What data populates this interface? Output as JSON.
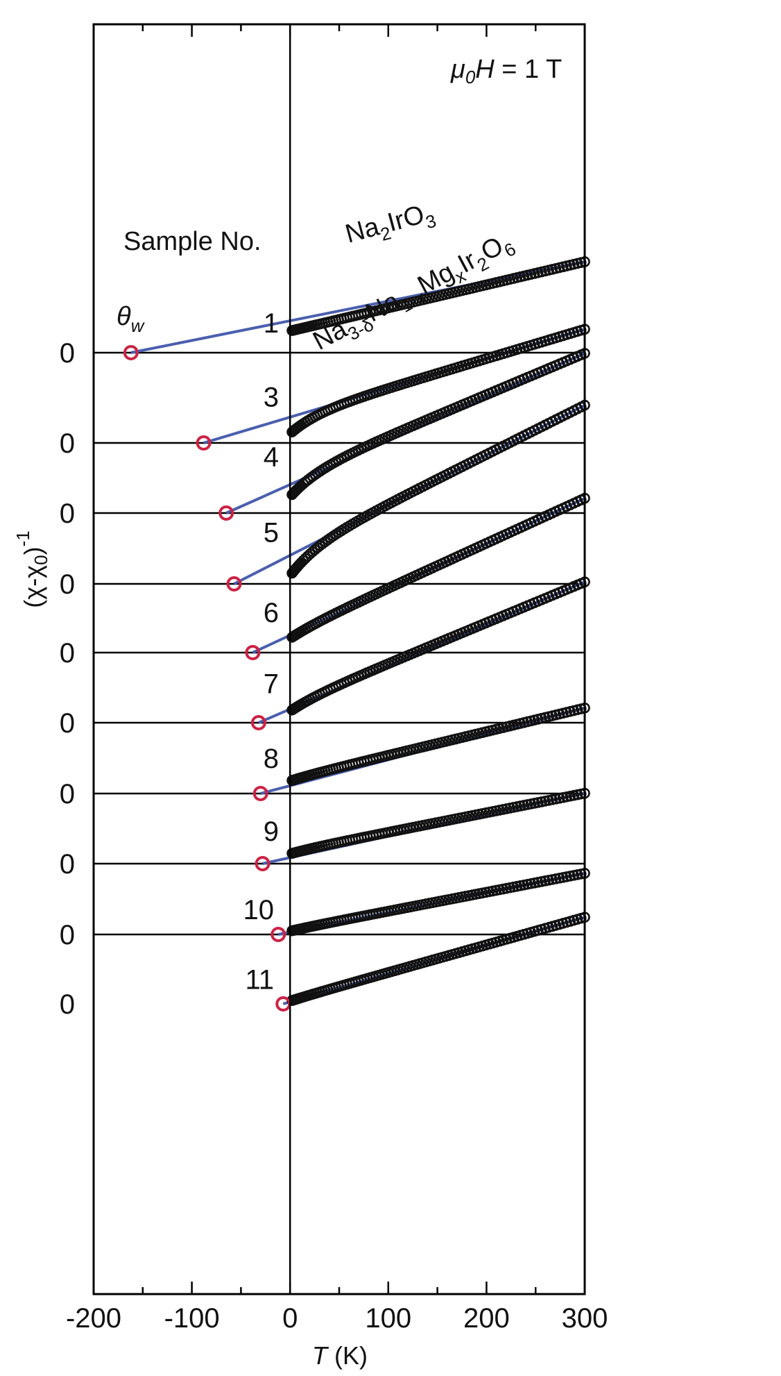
{
  "chart_data": {
    "type": "line",
    "xlabel_var": "T",
    "xlabel_unit": " (K)",
    "ylabel_main": "(χ-χ",
    "ylabel_sub": "0",
    "ylabel_tail": ")",
    "ylabel_sup": "-1",
    "xlim": [
      -200,
      300
    ],
    "xticks": [
      -200,
      -100,
      0,
      100,
      200,
      300
    ],
    "xtick_labels": [
      "-200",
      "-100",
      "0",
      "100",
      "200",
      "300"
    ],
    "field_label": {
      "mu": "μ",
      "mu_sub": "0",
      "H": "H",
      "rest": " = 1 T"
    },
    "theta_label": {
      "theta": "θ",
      "sub": "w"
    },
    "sample_header": "Sample No.",
    "formula_1": {
      "parts": [
        {
          "t": "Na",
          "s": "n"
        },
        {
          "t": "2",
          "s": "sub"
        },
        {
          "t": "IrO",
          "s": "n"
        },
        {
          "t": "3",
          "s": "sub"
        }
      ]
    },
    "formula_2": {
      "parts": [
        {
          "t": "Na",
          "s": "n"
        },
        {
          "t": "3-δ",
          "s": "sub"
        },
        {
          "t": "Na",
          "s": "n"
        },
        {
          "t": "1-x",
          "s": "sub"
        },
        {
          "t": "Mg",
          "s": "n"
        },
        {
          "t": "x",
          "s": "sub"
        },
        {
          "t": "Ir",
          "s": "n"
        },
        {
          "t": "2",
          "s": "sub"
        },
        {
          "t": "O",
          "s": "n"
        },
        {
          "t": "6",
          "s": "sub"
        }
      ]
    },
    "zero_label": "0",
    "colors": {
      "data": "#111111",
      "fit": "#4a5fae",
      "theta": "#cc2244",
      "axis": "#000000"
    },
    "series": [
      {
        "name": "1",
        "theta_w": -162,
        "y0": 0.4,
        "y300": 1.68,
        "upturn": 0.0,
        "t_min": 2
      },
      {
        "name": "3",
        "theta_w": -88,
        "y0": 0.47,
        "y300": 2.1,
        "upturn": 0.3,
        "t_min": 2
      },
      {
        "name": "4",
        "theta_w": -65,
        "y0": 0.66,
        "y300": 2.95,
        "upturn": 0.36,
        "t_min": 2
      },
      {
        "name": "5",
        "theta_w": -57,
        "y0": 0.57,
        "y300": 3.3,
        "upturn": 0.42,
        "t_min": 2
      },
      {
        "name": "6",
        "theta_w": -38,
        "y0": 0.36,
        "y300": 2.85,
        "upturn": 0.1,
        "t_min": 2
      },
      {
        "name": "7",
        "theta_w": -32,
        "y0": 0.34,
        "y300": 2.6,
        "upturn": 0.13,
        "t_min": 2
      },
      {
        "name": "8",
        "theta_w": -30,
        "y0": 0.27,
        "y300": 1.58,
        "upturn": 0.04,
        "t_min": 2
      },
      {
        "name": "9",
        "theta_w": -28,
        "y0": 0.22,
        "y300": 1.3,
        "upturn": 0.04,
        "t_min": 2
      },
      {
        "name": "10",
        "theta_w": -12,
        "y0": 0.08,
        "y300": 1.13,
        "upturn": 0.02,
        "t_min": 2
      },
      {
        "name": "11",
        "theta_w": -7,
        "y0": 0.07,
        "y300": 1.6,
        "upturn": 0.02,
        "t_min": 2
      }
    ]
  }
}
